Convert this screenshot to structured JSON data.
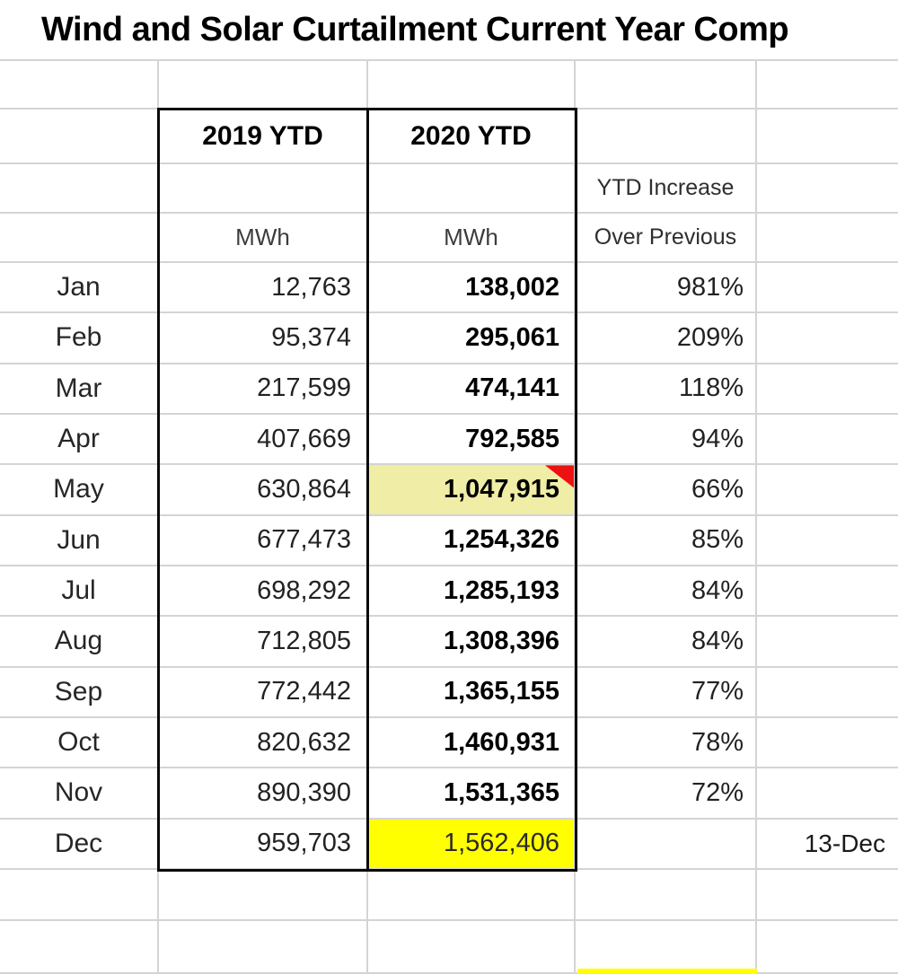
{
  "title": "Wind and Solar Curtailment Current Year Comp",
  "table": {
    "col_2019_header": "2019 YTD",
    "col_2020_header": "2020 YTD",
    "increase_header_line1": "YTD Increase",
    "increase_header_line2": "Over Previous",
    "unit_2019": "MWh",
    "unit_2020": "MWh",
    "months": [
      {
        "month": "Jan",
        "ytd_2019": "12,763",
        "ytd_2020": "138,002",
        "increase": "981%",
        "note": ""
      },
      {
        "month": "Feb",
        "ytd_2019": "95,374",
        "ytd_2020": "295,061",
        "increase": "209%",
        "note": ""
      },
      {
        "month": "Mar",
        "ytd_2019": "217,599",
        "ytd_2020": "474,141",
        "increase": "118%",
        "note": ""
      },
      {
        "month": "Apr",
        "ytd_2019": "407,669",
        "ytd_2020": "792,585",
        "increase": "94%",
        "note": ""
      },
      {
        "month": "May",
        "ytd_2019": "630,864",
        "ytd_2020": "1,047,915",
        "increase": "66%",
        "note": "",
        "highlight_2020": "pale",
        "comment_marker": true
      },
      {
        "month": "Jun",
        "ytd_2019": "677,473",
        "ytd_2020": "1,254,326",
        "increase": "85%",
        "note": ""
      },
      {
        "month": "Jul",
        "ytd_2019": "698,292",
        "ytd_2020": "1,285,193",
        "increase": "84%",
        "note": ""
      },
      {
        "month": "Aug",
        "ytd_2019": "712,805",
        "ytd_2020": "1,308,396",
        "increase": "84%",
        "note": ""
      },
      {
        "month": "Sep",
        "ytd_2019": "772,442",
        "ytd_2020": "1,365,155",
        "increase": "77%",
        "note": ""
      },
      {
        "month": "Oct",
        "ytd_2019": "820,632",
        "ytd_2020": "1,460,931",
        "increase": "78%",
        "note": ""
      },
      {
        "month": "Nov",
        "ytd_2019": "890,390",
        "ytd_2020": "1,531,365",
        "increase": "72%",
        "note": ""
      },
      {
        "month": "Dec",
        "ytd_2019": "959,703",
        "ytd_2020": "1,562,406",
        "increase": "",
        "note": "13-Dec",
        "highlight_2020": "bright"
      }
    ]
  },
  "colors": {
    "gridline": "#d4d4d4",
    "table_border": "#0a0a0a",
    "highlight_pale_yellow": "#f0eda6",
    "highlight_bright_yellow": "#ffff00",
    "comment_marker_red": "#ee1111"
  }
}
